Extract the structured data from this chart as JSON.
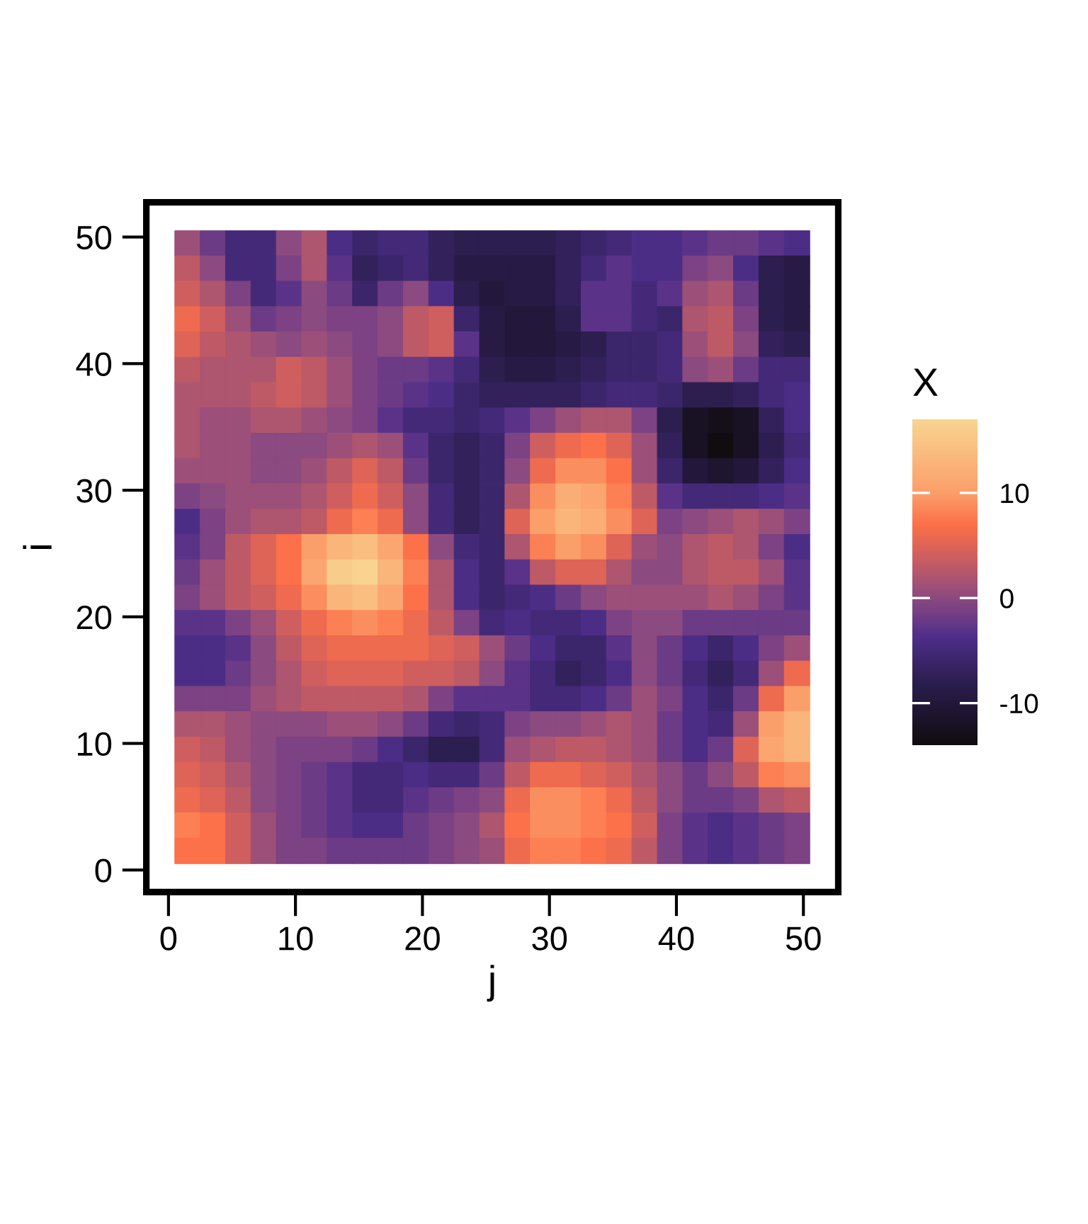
{
  "chart_data": {
    "type": "heatmap",
    "xlabel": "j",
    "ylabel": "i",
    "clabel": "X",
    "x": [
      1.5,
      3.5,
      5.5,
      7.5,
      9.5,
      11.5,
      13.5,
      15.5,
      17.5,
      19.5,
      21.5,
      23.5,
      25.5,
      27.5,
      29.5,
      31.5,
      33.5,
      35.5,
      37.5,
      39.5,
      41.5,
      43.5,
      45.5,
      47.5,
      49.5
    ],
    "y": [
      49.5,
      47.5,
      45.5,
      43.5,
      41.5,
      39.5,
      37.5,
      35.5,
      33.5,
      31.5,
      29.5,
      27.5,
      25.5,
      23.5,
      21.5,
      19.5,
      17.5,
      15.5,
      13.5,
      11.5,
      9.5,
      7.5,
      5.5,
      3.5,
      1.5
    ],
    "cells": [
      [
        1,
        -2,
        -5,
        -5,
        0,
        2,
        -4,
        -6,
        -5,
        -5,
        -7,
        -8,
        -8,
        -8,
        -8,
        -7,
        -6,
        -5,
        -4,
        -4,
        -3,
        -2,
        -2,
        -3,
        -4
      ],
      [
        3,
        0,
        -5,
        -5,
        -1,
        2,
        -3,
        -7,
        -6,
        -5,
        -7,
        -9,
        -9,
        -9,
        -9,
        -7,
        -5,
        -3,
        -4,
        -4,
        -1,
        0,
        -4,
        -8,
        -9
      ],
      [
        4,
        2,
        -1,
        -5,
        -3,
        0,
        -2,
        -6,
        -2,
        0,
        -4,
        -8,
        -10,
        -9,
        -9,
        -7,
        -3,
        -3,
        -5,
        -3,
        1,
        2,
        -2,
        -8,
        -9
      ],
      [
        6,
        4,
        1,
        -2,
        -1,
        0,
        -1,
        -1,
        0,
        3,
        4,
        -6,
        -9,
        -10,
        -10,
        -8,
        -3,
        -3,
        -5,
        -6,
        2,
        3,
        -1,
        -8,
        -9
      ],
      [
        5,
        3,
        2,
        1,
        0,
        1,
        0,
        -1,
        0,
        3,
        4,
        -3,
        -9,
        -10,
        -10,
        -9,
        -8,
        -6,
        -6,
        -5,
        1,
        3,
        0,
        -7,
        -8
      ],
      [
        3,
        2,
        2,
        2,
        4,
        3,
        1,
        -1,
        -2,
        -2,
        -3,
        -5,
        -8,
        -9,
        -9,
        -8,
        -7,
        -6,
        -6,
        -5,
        0,
        1,
        -2,
        -5,
        -5
      ],
      [
        2,
        2,
        2,
        3,
        4,
        3,
        1,
        -1,
        -2,
        -3,
        -4,
        -6,
        -7,
        -7,
        -7,
        -7,
        -6,
        -5,
        -5,
        -6,
        -8,
        -8,
        -7,
        -5,
        -4
      ],
      [
        2,
        1,
        1,
        2,
        2,
        1,
        0,
        -1,
        -3,
        -5,
        -5,
        -6,
        -5,
        -3,
        -1,
        1,
        2,
        2,
        -1,
        -8,
        -12,
        -13,
        -12,
        -7,
        -4
      ],
      [
        2,
        1,
        1,
        0,
        0,
        0,
        1,
        2,
        1,
        -3,
        -6,
        -7,
        -6,
        -1,
        4,
        6,
        7,
        5,
        1,
        -7,
        -12,
        -14,
        -12,
        -8,
        -5
      ],
      [
        1,
        1,
        1,
        0,
        0,
        1,
        3,
        5,
        3,
        -2,
        -6,
        -7,
        -6,
        0,
        6,
        9,
        9,
        7,
        1,
        -6,
        -10,
        -11,
        -10,
        -7,
        -4
      ],
      [
        -1,
        0,
        1,
        1,
        1,
        2,
        4,
        6,
        4,
        0,
        -5,
        -7,
        -6,
        2,
        9,
        12,
        11,
        8,
        3,
        -3,
        -5,
        -5,
        -5,
        -4,
        -3
      ],
      [
        -4,
        -1,
        1,
        2,
        2,
        3,
        6,
        8,
        6,
        0,
        -5,
        -7,
        -6,
        5,
        10,
        13,
        12,
        9,
        5,
        -1,
        0,
        1,
        2,
        1,
        -1
      ],
      [
        -3,
        -1,
        3,
        5,
        7,
        10,
        13,
        14,
        11,
        7,
        0,
        -5,
        -6,
        2,
        8,
        10,
        9,
        5,
        1,
        0,
        2,
        3,
        2,
        -1,
        -4
      ],
      [
        -2,
        1,
        3,
        5,
        7,
        11,
        16,
        17,
        13,
        8,
        2,
        -4,
        -6,
        -3,
        3,
        5,
        5,
        2,
        0,
        0,
        2,
        3,
        3,
        1,
        -3
      ],
      [
        -1,
        1,
        3,
        4,
        6,
        9,
        13,
        14,
        11,
        7,
        2,
        -4,
        -6,
        -5,
        -4,
        -2,
        0,
        1,
        1,
        1,
        1,
        2,
        1,
        -1,
        -3
      ],
      [
        -3,
        -3,
        -1,
        1,
        4,
        6,
        8,
        9,
        8,
        6,
        3,
        -1,
        -5,
        -4,
        -5,
        -5,
        -4,
        -1,
        0,
        0,
        -2,
        -2,
        -2,
        -2,
        -2
      ],
      [
        -4,
        -4,
        -3,
        0,
        3,
        5,
        6,
        6,
        6,
        6,
        5,
        4,
        1,
        -2,
        -4,
        -6,
        -6,
        -3,
        0,
        -2,
        -4,
        -6,
        -4,
        -1,
        1
      ],
      [
        -4,
        -4,
        -2,
        0,
        2,
        4,
        5,
        5,
        5,
        4,
        4,
        3,
        0,
        -3,
        -5,
        -7,
        -6,
        -4,
        0,
        -2,
        -5,
        -7,
        -5,
        1,
        6
      ],
      [
        -1,
        -1,
        -1,
        1,
        2,
        3,
        3,
        3,
        3,
        2,
        -1,
        -3,
        -3,
        -3,
        -5,
        -5,
        -4,
        -2,
        1,
        -1,
        -4,
        -6,
        -2,
        6,
        10
      ],
      [
        2,
        2,
        1,
        0,
        0,
        0,
        1,
        1,
        0,
        -2,
        -5,
        -6,
        -5,
        -1,
        0,
        0,
        1,
        2,
        1,
        -2,
        -4,
        -5,
        1,
        10,
        13
      ],
      [
        4,
        3,
        1,
        0,
        -1,
        -1,
        -1,
        -2,
        -4,
        -6,
        -8,
        -8,
        -5,
        1,
        2,
        3,
        3,
        2,
        1,
        -2,
        -4,
        -2,
        5,
        11,
        13
      ],
      [
        5,
        4,
        2,
        0,
        -1,
        -2,
        -3,
        -5,
        -5,
        -4,
        -5,
        -5,
        -2,
        3,
        6,
        6,
        5,
        4,
        2,
        0,
        -2,
        0,
        3,
        8,
        9
      ],
      [
        6,
        5,
        3,
        0,
        -1,
        -2,
        -3,
        -5,
        -5,
        -3,
        -2,
        -1,
        0,
        6,
        9,
        9,
        8,
        6,
        3,
        0,
        -2,
        -2,
        -1,
        2,
        3
      ],
      [
        8,
        7,
        4,
        1,
        -1,
        -2,
        -3,
        -4,
        -4,
        -2,
        -1,
        0,
        2,
        7,
        9,
        9,
        8,
        7,
        4,
        -1,
        -3,
        -4,
        -3,
        -2,
        -1
      ],
      [
        7,
        7,
        4,
        1,
        -1,
        -1,
        -2,
        -2,
        -2,
        -2,
        -1,
        0,
        1,
        6,
        8,
        8,
        7,
        6,
        3,
        -1,
        -3,
        -4,
        -3,
        -2,
        -1
      ]
    ],
    "xlim": [
      -2,
      53
    ],
    "ylim": [
      -2,
      53
    ],
    "xticks": [
      0,
      10,
      20,
      30,
      40,
      50
    ],
    "yticks": [
      0,
      10,
      20,
      30,
      40,
      50
    ],
    "clim": [
      -14,
      17
    ],
    "cticks": [
      -10,
      0,
      10
    ]
  }
}
